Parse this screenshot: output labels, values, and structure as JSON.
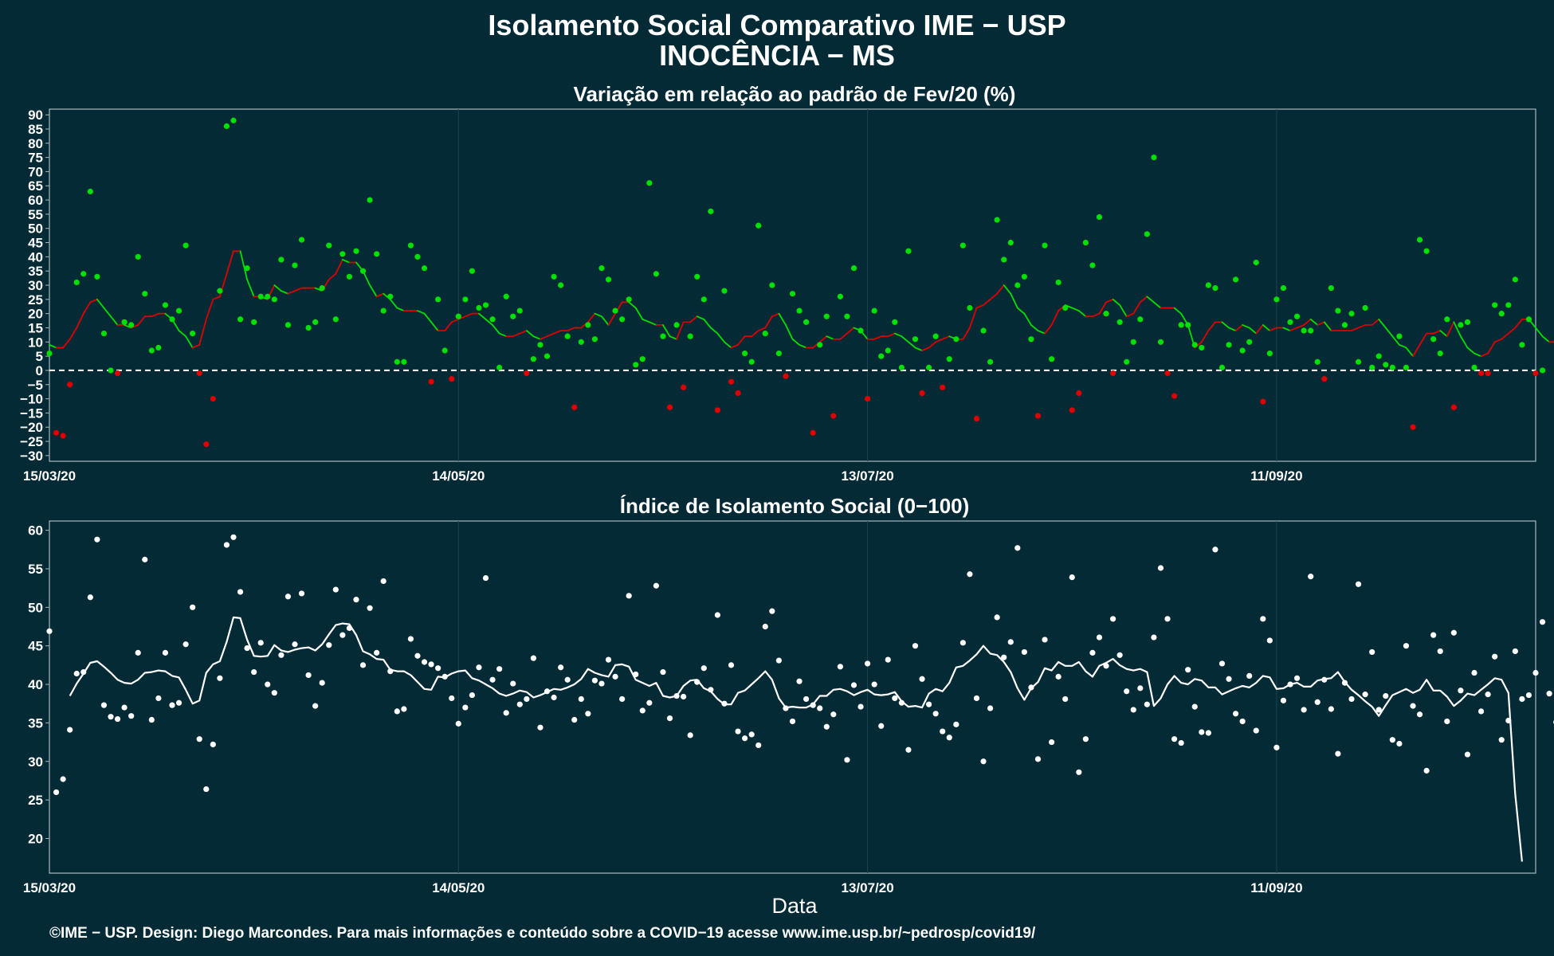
{
  "header": {
    "title_line1": "Isolamento Social Comparativo IME − USP",
    "title_line2": "INOCÊNCIA − MS"
  },
  "footer": {
    "credit": "©IME − USP. Design: Diego Marcondes. Para mais informações e conteúdo sobre a COVID−19 acesse www.ime.usp.br/~pedrosp/covid19/"
  },
  "colors": {
    "background": "#042a35",
    "positive": "#00e000",
    "negative": "#e00000",
    "index": "#ffffff",
    "grid": "#1a4550",
    "frame": "#a9b8bd"
  },
  "chart_data": [
    {
      "type": "scatter",
      "title": "Variação em relação ao padrão de Fev/20 (%)",
      "xlabel": "",
      "ylabel": "",
      "x_ticks": [
        "15/03/20",
        "14/05/20",
        "13/07/20",
        "11/09/20"
      ],
      "x_range_days_from_start": [
        0,
        218
      ],
      "ylim": [
        -32,
        92
      ],
      "y_ticks": [
        -30,
        -25,
        -20,
        -15,
        -10,
        -5,
        0,
        5,
        10,
        15,
        20,
        25,
        30,
        35,
        40,
        45,
        50,
        55,
        60,
        65,
        70,
        75,
        80,
        85,
        90
      ],
      "reference_line": 0,
      "series": [
        {
          "values": [
            6,
            -22,
            -23,
            -5,
            31,
            34,
            63,
            33,
            13,
            0,
            -1,
            17,
            16,
            40,
            27,
            7,
            8,
            23,
            18,
            21,
            44,
            13,
            -1,
            -26,
            -10,
            28,
            86,
            88,
            18,
            36,
            17,
            26,
            26,
            25,
            39,
            16,
            37,
            46,
            15,
            17,
            29,
            44,
            18,
            41,
            33,
            42,
            35,
            60,
            41,
            21,
            26,
            3,
            3,
            44,
            40,
            36,
            -4,
            25,
            7,
            -3,
            19,
            25,
            35,
            22,
            23,
            18,
            1,
            26,
            19,
            21,
            -1,
            4,
            9,
            5,
            33,
            30,
            12,
            -13,
            10,
            16,
            11,
            36,
            32,
            21,
            18,
            25,
            2,
            4,
            66,
            34,
            12,
            -13,
            16,
            -6,
            12,
            33,
            25,
            56,
            -14,
            28,
            -4,
            -8,
            6,
            3,
            51,
            13,
            30,
            6,
            -2,
            27,
            21,
            17,
            -22,
            9,
            19,
            -16,
            26,
            19,
            36,
            14,
            -10,
            21,
            5,
            7,
            17,
            1,
            42,
            11,
            -8,
            1,
            12,
            -6,
            4,
            11,
            44,
            22,
            -17,
            14,
            3,
            53,
            39,
            45,
            30,
            33,
            11,
            -16,
            44,
            4,
            31,
            22,
            -14,
            -8,
            45,
            37,
            54,
            20,
            -1,
            17,
            3,
            10,
            18,
            48,
            75,
            10,
            -1,
            -9,
            16,
            16,
            9,
            8,
            30,
            29,
            1,
            9,
            32,
            7,
            10,
            38,
            -11,
            6,
            25,
            29,
            17,
            19,
            14,
            14,
            3,
            -3,
            29,
            21,
            16,
            20,
            3,
            22,
            1,
            5,
            2,
            1,
            12,
            1,
            -20,
            46,
            42,
            11,
            6,
            18,
            -13,
            16,
            17,
            1,
            -1,
            -1,
            23,
            20,
            23,
            32,
            9,
            18,
            -1,
            0
          ],
          "moving_average": [
            9,
            8,
            8,
            11,
            15,
            20,
            24,
            25,
            22,
            19,
            16,
            16,
            15,
            16,
            19,
            19,
            20,
            20,
            18,
            14,
            12,
            8,
            9,
            18,
            25,
            26,
            34,
            42,
            42,
            32,
            26,
            26,
            25,
            30,
            28,
            27,
            28,
            29,
            29,
            29,
            28,
            32,
            34,
            39,
            38,
            38,
            35,
            30,
            26,
            27,
            25,
            22,
            21,
            21,
            21,
            20,
            17,
            14,
            14,
            17,
            18,
            19,
            20,
            20,
            18,
            16,
            13,
            12,
            12,
            13,
            14,
            12,
            11,
            12,
            13,
            14,
            14,
            15,
            15,
            17,
            20,
            19,
            16,
            20,
            24,
            24,
            22,
            18,
            17,
            16,
            16,
            12,
            11,
            17,
            17,
            19,
            18,
            15,
            13,
            10,
            8,
            9,
            12,
            12,
            14,
            15,
            19,
            20,
            16,
            11,
            9,
            8,
            8,
            10,
            12,
            11,
            11,
            13,
            15,
            14,
            11,
            11,
            12,
            12,
            13,
            12,
            10,
            8,
            7,
            8,
            10,
            11,
            12,
            11,
            11,
            15,
            22,
            23,
            25,
            27,
            30,
            27,
            22,
            20,
            16,
            14,
            13,
            16,
            21,
            23,
            22,
            21,
            19,
            19,
            20,
            24,
            25,
            23,
            19,
            20,
            24,
            26,
            24,
            22,
            22,
            22,
            20,
            16,
            8,
            10,
            14,
            17,
            17,
            15,
            14,
            16,
            15,
            13,
            16,
            14,
            15,
            15,
            14,
            15,
            16,
            18,
            16,
            17,
            14,
            14,
            14,
            14,
            15,
            16,
            16,
            18,
            15,
            12,
            9,
            8,
            5,
            9,
            13,
            13,
            14,
            12,
            17,
            12,
            8,
            6,
            5,
            6,
            10,
            11,
            13,
            15,
            18,
            18,
            15,
            12,
            10,
            10
          ]
        }
      ]
    },
    {
      "type": "scatter",
      "title": "Índice de Isolamento Social (0−100)",
      "xlabel": "Data",
      "ylabel": "",
      "x_ticks": [
        "15/03/20",
        "14/05/20",
        "13/07/20",
        "11/09/20"
      ],
      "x_range_days_from_start": [
        0,
        218
      ],
      "ylim": [
        15.5,
        61.2
      ],
      "y_ticks": [
        20,
        25,
        30,
        35,
        40,
        45,
        50,
        55,
        60
      ],
      "series": [
        {
          "values": [
            46.9,
            26.0,
            27.7,
            34.1,
            41.4,
            41.6,
            51.3,
            58.8,
            37.3,
            35.8,
            35.5,
            37.0,
            35.9,
            44.1,
            56.2,
            35.4,
            38.2,
            44.1,
            37.3,
            37.6,
            45.2,
            50.0,
            32.9,
            26.4,
            32.2,
            40.8,
            58.1,
            59.1,
            52.0,
            44.7,
            41.6,
            45.4,
            40.0,
            38.9,
            43.8,
            51.4,
            45.2,
            51.8,
            41.2,
            37.2,
            40.2,
            45.1,
            52.3,
            46.4,
            47.3,
            51.0,
            42.5,
            49.9,
            44.1,
            53.4,
            41.7,
            36.5,
            36.8,
            45.9,
            43.7,
            42.9,
            42.6,
            42.1,
            41.0,
            38.2,
            34.9,
            37.0,
            38.6,
            42.2,
            53.8,
            40.6,
            42.0,
            36.3,
            40.1,
            37.4,
            38.1,
            43.4,
            34.4,
            39.1,
            38.3,
            42.2,
            40.6,
            35.4,
            38.1,
            36.2,
            40.5,
            40.1,
            43.2,
            41.0,
            38.1,
            51.5,
            41.3,
            36.6,
            37.6,
            52.8,
            41.6,
            35.6,
            38.5,
            38.4,
            33.4,
            40.3,
            42.1,
            39.3,
            49.0,
            37.5,
            42.5,
            33.9,
            33.0,
            33.5,
            32.1,
            47.5,
            49.5,
            43.1,
            36.9,
            35.2,
            40.4,
            38.1,
            37.3,
            36.9,
            34.5,
            36.1,
            42.3,
            30.2,
            39.9,
            37.1,
            42.7,
            40.0,
            34.6,
            43.2,
            38.2,
            37.6,
            31.5,
            45.0,
            40.7,
            37.4,
            36.2,
            33.9,
            33.1,
            34.8,
            45.4,
            54.3,
            38.2,
            30.0,
            36.9,
            48.7,
            43.5,
            45.5,
            57.7,
            44.2,
            39.6,
            30.3,
            45.8,
            32.5,
            41.0,
            38.1,
            53.9,
            28.6,
            32.9,
            44.1,
            46.1,
            42.4,
            48.5,
            43.8,
            39.1,
            36.7,
            39.5,
            37.4,
            46.1,
            55.1,
            48.5,
            32.9,
            32.4,
            41.9,
            37.1,
            33.8,
            33.7,
            57.5,
            42.7,
            40.7,
            36.2,
            35.2,
            41.1,
            34.0,
            48.5,
            45.7,
            31.8,
            37.9,
            40.0,
            40.8,
            36.7,
            54.0,
            37.7,
            40.6,
            36.8,
            31.0,
            40.2,
            38.1,
            53.0,
            38.7,
            44.2,
            36.7,
            38.5,
            32.8,
            32.3,
            45.0,
            37.2,
            36.1,
            28.8,
            46.4,
            44.3,
            35.2,
            46.7,
            39.2,
            30.9,
            41.5,
            36.5,
            38.7,
            43.6,
            32.8,
            35.3,
            44.3,
            38.1,
            38.6,
            41.5,
            48.1,
            38.8,
            35.1,
            35.8
          ],
          "moving_average": [
            null,
            null,
            null,
            38.5,
            40.1,
            41.4,
            42.8,
            43.0,
            42.3,
            41.5,
            40.6,
            40.2,
            40.1,
            40.6,
            41.5,
            41.6,
            41.8,
            41.7,
            41.1,
            40.9,
            39.3,
            37.5,
            37.9,
            41.5,
            42.6,
            43.0,
            45.5,
            48.7,
            48.6,
            45.8,
            43.7,
            43.6,
            43.7,
            45.1,
            44.4,
            44.2,
            44.5,
            44.7,
            44.8,
            44.4,
            45.2,
            46.5,
            47.7,
            47.9,
            47.8,
            46.4,
            44.3,
            43.9,
            43.3,
            43.2,
            41.9,
            41.7,
            41.7,
            41.2,
            40.3,
            39.4,
            39.3,
            41.0,
            40.9,
            41.4,
            41.7,
            41.8,
            40.8,
            40.5,
            40.0,
            39.5,
            38.8,
            38.5,
            38.8,
            39.2,
            39.0,
            38.3,
            38.6,
            39.0,
            39.4,
            39.3,
            39.6,
            40.0,
            40.7,
            42.0,
            41.5,
            41.2,
            41.0,
            42.5,
            42.6,
            42.3,
            40.6,
            40.2,
            39.8,
            40.2,
            38.5,
            38.3,
            38.5,
            39.8,
            40.5,
            40.6,
            39.5,
            39.1,
            38.1,
            37.4,
            37.4,
            38.9,
            39.2,
            40.0,
            40.8,
            41.7,
            40.6,
            38.2,
            37.0,
            37.1,
            37.0,
            37.0,
            37.4,
            38.5,
            38.5,
            39.3,
            39.4,
            39.1,
            38.6,
            39.0,
            39.3,
            38.7,
            38.6,
            38.7,
            39.0,
            37.8,
            37.1,
            37.2,
            37.0,
            38.8,
            39.4,
            39.1,
            40.2,
            42.2,
            42.4,
            43.1,
            43.9,
            45.0,
            44.0,
            43.8,
            42.9,
            41.6,
            39.5,
            38.0,
            39.5,
            40.3,
            42.1,
            41.8,
            42.9,
            42.4,
            42.4,
            42.9,
            41.7,
            41.0,
            42.4,
            42.8,
            43.3,
            42.5,
            42.0,
            41.8,
            42.0,
            41.6,
            37.2,
            38.2,
            40.0,
            41.1,
            40.2,
            40.0,
            40.7,
            40.5,
            39.6,
            39.6,
            38.7,
            39.1,
            39.5,
            39.8,
            39.6,
            40.2,
            41.1,
            40.9,
            39.4,
            39.5,
            40.0,
            40.2,
            39.7,
            39.7,
            40.5,
            40.7,
            40.8,
            41.6,
            40.3,
            39.3,
            38.6,
            37.8,
            37.1,
            35.9,
            37.3,
            38.6,
            39.0,
            39.4,
            38.9,
            39.3,
            40.6,
            39.2,
            39.2,
            38.4,
            37.2,
            37.9,
            38.8,
            38.6,
            39.3,
            40.0,
            40.8,
            40.6,
            38.9,
            25.8,
            17.0
          ]
        }
      ]
    }
  ]
}
